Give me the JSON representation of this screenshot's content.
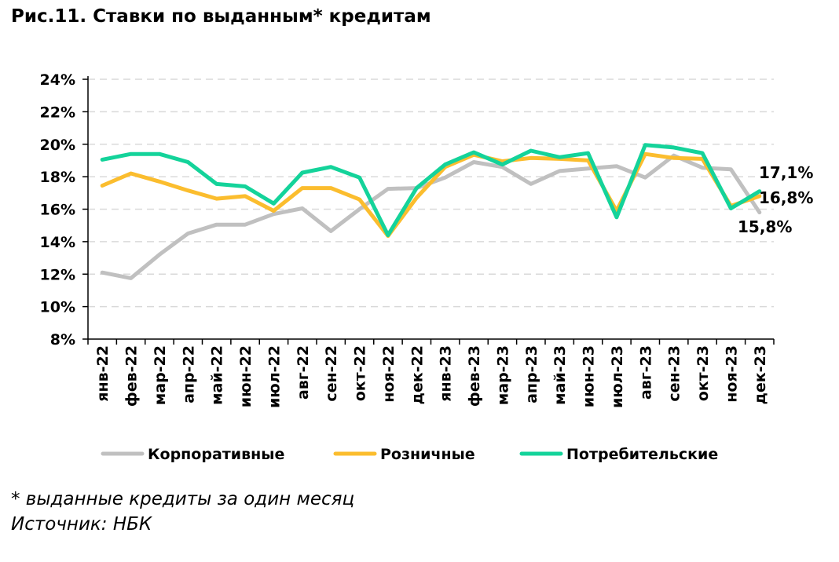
{
  "title": "Рис.11. Ставки по выданным* кредитам",
  "notes": {
    "footnote": "* выданные кредиты за один месяц",
    "source": "Источник: НБК"
  },
  "chart_data": {
    "type": "line",
    "title": "Рис.11. Ставки по выданным* кредитам",
    "xlabel": "",
    "ylabel": "",
    "ylim": [
      8,
      24
    ],
    "yticks": [
      "8%",
      "10%",
      "12%",
      "14%",
      "16%",
      "18%",
      "20%",
      "22%",
      "24%"
    ],
    "grid": true,
    "legend_position": "bottom",
    "categories": [
      "янв-22",
      "фев-22",
      "мар-22",
      "апр-22",
      "май-22",
      "июн-22",
      "июл-22",
      "авг-22",
      "сен-22",
      "окт-22",
      "ноя-22",
      "дек-22",
      "янв-23",
      "фев-23",
      "мар-23",
      "апр-23",
      "май-23",
      "июн-23",
      "июл-23",
      "авг-23",
      "сен-23",
      "окт-23",
      "ноя-23",
      "дек-23"
    ],
    "series": [
      {
        "name": "Корпоративные",
        "color": "#c0c0c0",
        "values": [
          12.1,
          11.75,
          13.2,
          14.5,
          15.05,
          15.05,
          15.7,
          16.05,
          14.65,
          16.0,
          17.25,
          17.3,
          17.95,
          18.9,
          18.6,
          17.55,
          18.35,
          18.5,
          18.65,
          17.95,
          19.3,
          18.55,
          18.45,
          15.8
        ],
        "end_label": "15,8%"
      },
      {
        "name": "Розничные",
        "color": "#fbbd2e",
        "values": [
          17.45,
          18.2,
          17.7,
          17.15,
          16.65,
          16.8,
          15.9,
          17.3,
          17.3,
          16.6,
          14.35,
          16.7,
          18.6,
          19.35,
          18.95,
          19.15,
          19.1,
          19.0,
          15.9,
          19.4,
          19.15,
          19.1,
          16.2,
          16.8
        ],
        "end_label": "16,8%"
      },
      {
        "name": "Потребительские",
        "color": "#14d39a",
        "values": [
          19.05,
          19.4,
          19.4,
          18.9,
          17.55,
          17.4,
          16.35,
          18.25,
          18.6,
          17.95,
          14.4,
          17.3,
          18.75,
          19.5,
          18.75,
          19.6,
          19.2,
          19.45,
          15.5,
          19.95,
          19.8,
          19.45,
          16.05,
          17.1
        ],
        "end_label": "17,1%"
      }
    ]
  }
}
